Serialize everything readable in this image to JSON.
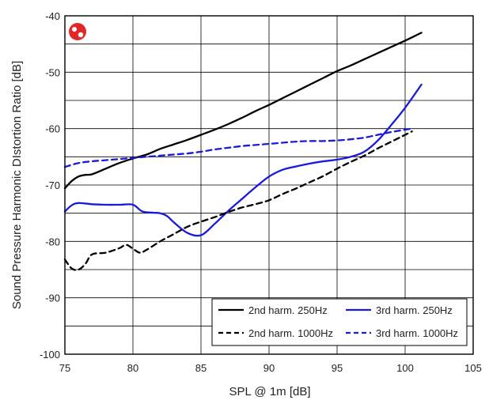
{
  "chart_data": {
    "type": "line",
    "title": "",
    "xlabel": "SPL @ 1m [dB]",
    "ylabel": "Sound Pressure Harmonic DIstortion Ratio [dB]",
    "xlim": [
      75,
      105
    ],
    "ylim": [
      -100,
      -40
    ],
    "x_ticks": [
      75,
      80,
      85,
      90,
      95,
      100,
      105
    ],
    "y_ticks": [
      -40,
      -50,
      -60,
      -70,
      -80,
      -90,
      -100
    ],
    "grid": true,
    "legend_position": "bottom-right",
    "logo_icon": "red-speaker-logo",
    "series": [
      {
        "name": "2nd harm. 250Hz",
        "color": "#000000",
        "dash": "solid",
        "x": [
          75,
          75.5,
          76,
          76.5,
          77,
          78,
          79,
          80,
          81,
          82,
          83,
          84,
          85,
          86,
          87,
          88,
          89,
          90,
          91,
          92,
          93,
          94,
          95,
          96,
          97,
          98,
          99,
          100,
          101.2
        ],
        "y": [
          -70.6,
          -69.3,
          -68.5,
          -68.2,
          -68.1,
          -67.1,
          -66.1,
          -65.3,
          -64.6,
          -63.6,
          -62.8,
          -62.0,
          -61.1,
          -60.2,
          -59.2,
          -58.1,
          -56.9,
          -55.8,
          -54.6,
          -53.4,
          -52.2,
          -51.0,
          -49.8,
          -48.8,
          -47.7,
          -46.6,
          -45.5,
          -44.4,
          -43.0
        ]
      },
      {
        "name": "3rd harm. 250Hz",
        "color": "#1a1adc",
        "dash": "solid",
        "x": [
          75,
          75.5,
          76,
          77,
          78,
          79,
          80,
          80.7,
          81.5,
          82,
          82.5,
          83,
          84,
          85,
          86,
          87,
          88,
          89,
          90,
          91,
          92,
          93,
          94,
          95,
          96,
          97,
          98,
          99,
          100,
          101.2
        ],
        "y": [
          -74.7,
          -73.6,
          -73.2,
          -73.4,
          -73.5,
          -73.5,
          -73.5,
          -74.7,
          -74.9,
          -75.0,
          -75.5,
          -76.6,
          -78.5,
          -78.9,
          -76.9,
          -74.6,
          -72.5,
          -70.4,
          -68.5,
          -67.3,
          -66.7,
          -66.2,
          -65.8,
          -65.5,
          -65.0,
          -64.1,
          -62.1,
          -59.3,
          -56.3,
          -52.2
        ]
      },
      {
        "name": "2nd harm. 1000Hz",
        "color": "#000000",
        "dash": "dashed",
        "x": [
          75,
          75.5,
          76,
          76.5,
          77,
          78,
          79,
          79.5,
          80,
          80.5,
          81,
          82,
          83,
          84,
          85,
          86,
          87,
          88,
          89,
          90,
          91,
          92,
          93,
          94,
          95,
          96,
          97,
          98,
          99,
          100.5
        ],
        "y": [
          -83.2,
          -84.8,
          -85.0,
          -84.0,
          -82.3,
          -82.0,
          -81.2,
          -80.6,
          -81.3,
          -82.0,
          -81.5,
          -80.0,
          -78.7,
          -77.4,
          -76.5,
          -75.7,
          -74.8,
          -74.0,
          -73.4,
          -72.7,
          -71.6,
          -70.6,
          -69.5,
          -68.4,
          -67.1,
          -65.9,
          -64.8,
          -63.5,
          -62.3,
          -60.5
        ]
      },
      {
        "name": "3rd harm. 1000Hz",
        "color": "#1a1adc",
        "dash": "dashed",
        "x": [
          75,
          76,
          77,
          78,
          79,
          80,
          81,
          82,
          83,
          84,
          85,
          86,
          87,
          88,
          89,
          90,
          91,
          92,
          93,
          94,
          95,
          96,
          97,
          98,
          99,
          100.5
        ],
        "y": [
          -66.8,
          -66.1,
          -65.8,
          -65.6,
          -65.4,
          -65.2,
          -65.0,
          -64.8,
          -64.6,
          -64.4,
          -64.1,
          -63.7,
          -63.4,
          -63.1,
          -62.9,
          -62.7,
          -62.5,
          -62.3,
          -62.2,
          -62.2,
          -62.1,
          -61.9,
          -61.6,
          -61.1,
          -60.6,
          -60.0
        ]
      }
    ]
  }
}
